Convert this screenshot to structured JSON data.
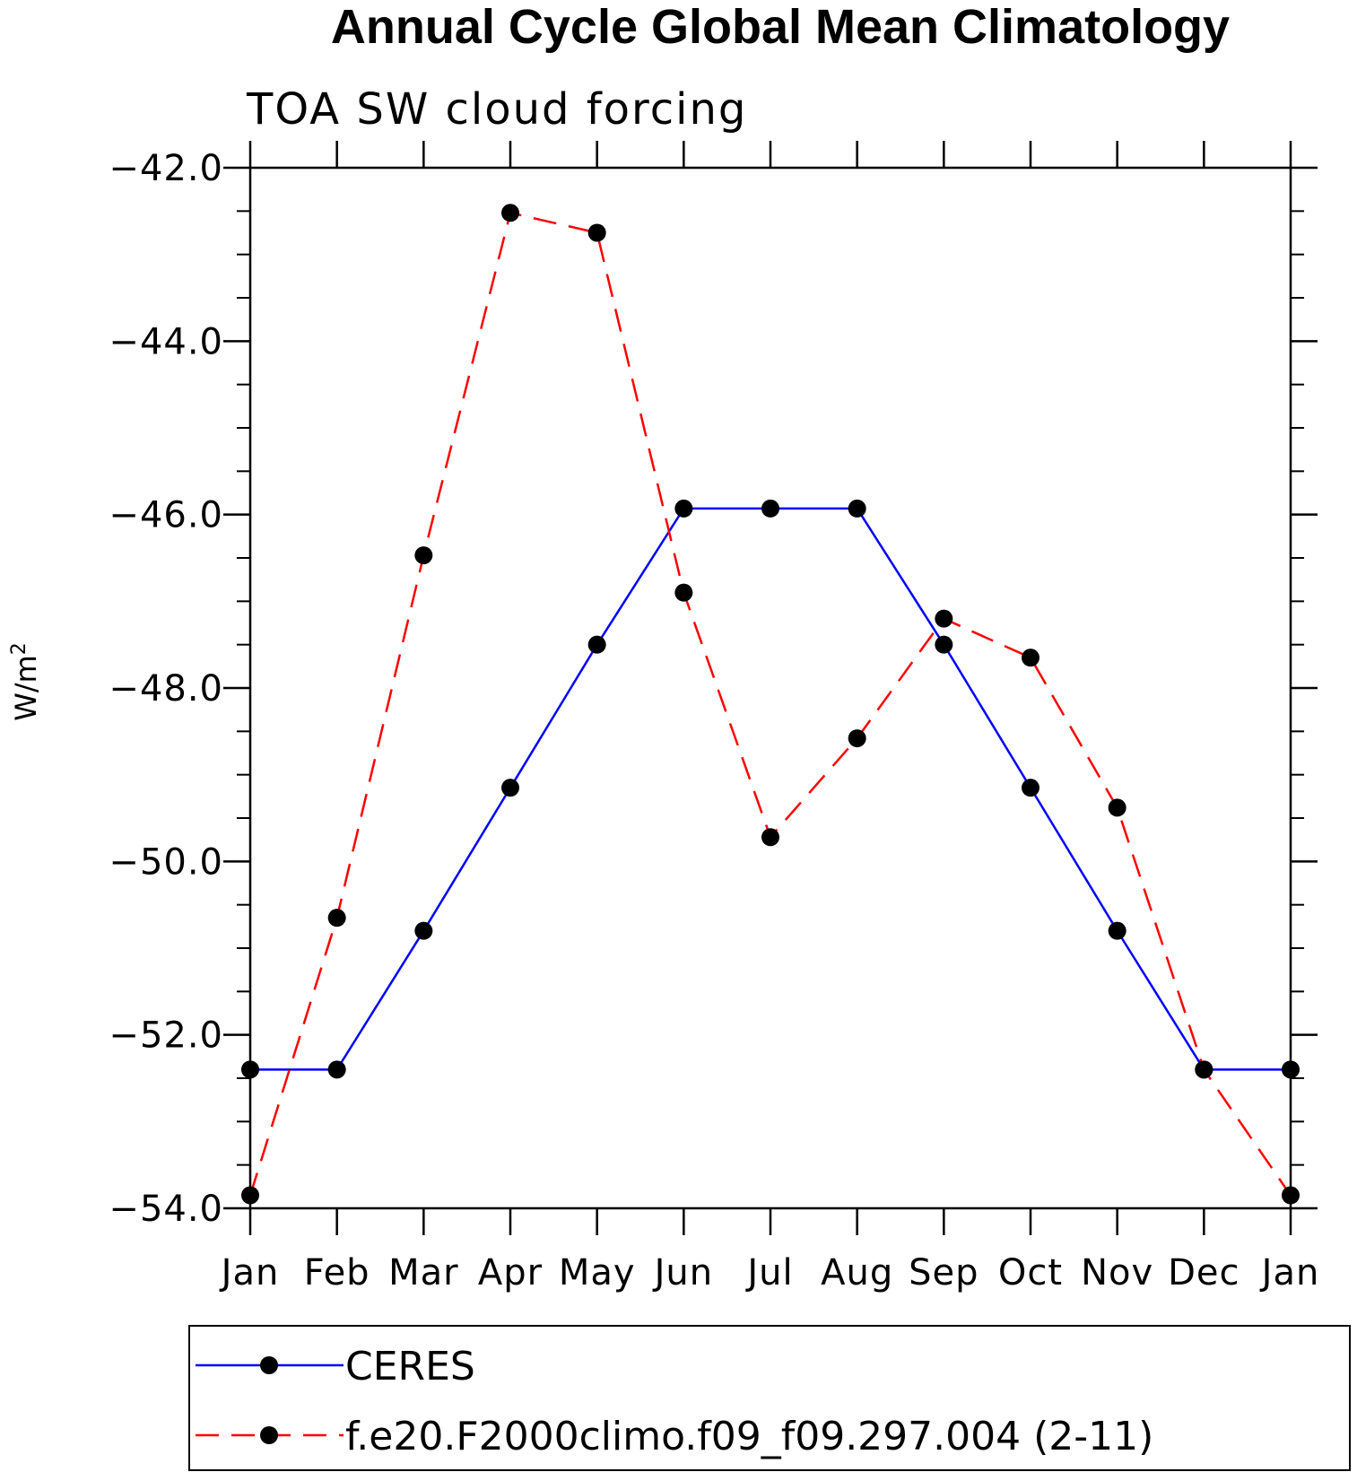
{
  "chart_data": {
    "type": "line",
    "title": "Annual Cycle Global Mean Climatology",
    "subtitle": "TOA SW cloud forcing",
    "ylabel": "W/m",
    "ylabel_sup": "2",
    "xlabel": "",
    "categories": [
      "Jan",
      "Feb",
      "Mar",
      "Apr",
      "May",
      "Jun",
      "Jul",
      "Aug",
      "Sep",
      "Oct",
      "Nov",
      "Dec",
      "Jan"
    ],
    "ylim": [
      -54.0,
      -42.0
    ],
    "yticks": [
      "-42.0",
      "-44.0",
      "-46.0",
      "-48.0",
      "-50.0",
      "-52.0",
      "-54.0"
    ],
    "grid": false,
    "legend_position": "bottom",
    "series": [
      {
        "name": "CERES",
        "color": "#0000ff",
        "line_style": "solid",
        "marker": "filled-circle",
        "values": [
          -52.4,
          -52.4,
          -50.8,
          -49.15,
          -47.5,
          -45.93,
          -45.93,
          -45.93,
          -47.5,
          -49.15,
          -50.8,
          -52.4,
          -52.4
        ]
      },
      {
        "name": "f.e20.F2000climo.f09_f09.297.004 (2-11)",
        "color": "#ff0000",
        "line_style": "dashed",
        "marker": "filled-circle",
        "values": [
          -53.85,
          -50.65,
          -46.47,
          -42.52,
          -42.75,
          -46.9,
          -49.72,
          -48.58,
          -47.2,
          -47.65,
          -49.38,
          -52.4,
          -53.85
        ]
      }
    ]
  }
}
